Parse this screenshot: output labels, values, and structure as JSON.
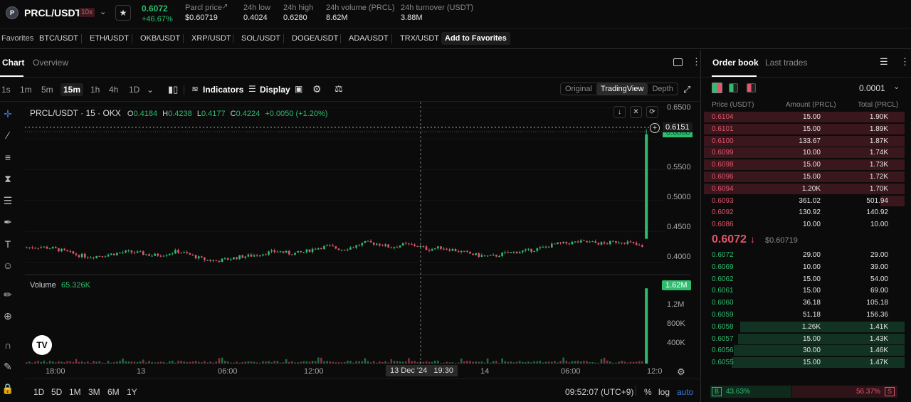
{
  "header": {
    "pair": "PRCL/USDT",
    "leverage": "10x",
    "last_price": "0.6072",
    "change_pct": "+46.67%",
    "stats": [
      {
        "label": "Parcl price",
        "value": "$0.60719"
      },
      {
        "label": "24h low",
        "value": "0.4024"
      },
      {
        "label": "24h high",
        "value": "0.6280"
      },
      {
        "label": "24h volume (PRCL)",
        "value": "8.62M"
      },
      {
        "label": "24h turnover (USDT)",
        "value": "3.88M"
      }
    ]
  },
  "favorites": {
    "label": "Favorites",
    "items": [
      "BTC/USDT",
      "ETH/USDT",
      "OKB/USDT",
      "XRP/USDT",
      "SOL/USDT",
      "DOGE/USDT",
      "ADA/USDT",
      "TRX/USDT"
    ],
    "add_label": "Add to Favorites"
  },
  "chart_panel": {
    "tabs": [
      "Chart",
      "Overview"
    ],
    "timeframes": [
      "1s",
      "1m",
      "5m",
      "15m",
      "1h",
      "4h",
      "1D"
    ],
    "active_timeframe": "15m",
    "indicators_label": "Indicators",
    "display_label": "Display",
    "view_modes": [
      "Original",
      "TradingView",
      "Depth"
    ],
    "active_view": "TradingView",
    "legend": {
      "title": "PRCL/USDT · 15 · OKX",
      "o_label": "O",
      "o": "0.4184",
      "h_label": "H",
      "h": "0.4238",
      "l_label": "L",
      "l": "0.4177",
      "c_label": "C",
      "c": "0.4224",
      "change": "+0.0050 (+1.20%)"
    },
    "crosshair_price": "0.6151",
    "volume_label": "Volume",
    "volume_value": "65.326K",
    "volume_last": "1.62M",
    "price_axis": [
      "0.6500",
      "0.5500",
      "0.5000",
      "0.4500",
      "0.4000"
    ],
    "price_axis_partial": "0.6000",
    "volume_axis": [
      "1.2M",
      "800K",
      "400K"
    ],
    "time_axis": [
      "18:00",
      "13",
      "06:00",
      "12:00",
      "14",
      "06:00",
      "12:0"
    ],
    "crosshair_time": "13 Dec '24   19:30",
    "ranges": [
      "1D",
      "5D",
      "1M",
      "3M",
      "6M",
      "1Y"
    ],
    "clock": "09:52:07 (UTC+9)",
    "pct_label": "%",
    "log_label": "log",
    "auto_label": "auto",
    "tv_logo": "TV"
  },
  "chart_data": {
    "type": "candlestick",
    "title": "PRCL/USDT · 15 · OKX",
    "price_range": [
      0.38,
      0.66
    ],
    "last_candle": {
      "open": 0.4184,
      "high": 0.4238,
      "low": 0.4177,
      "close": 0.4224
    },
    "spike": {
      "open": 0.438,
      "high": 0.6151,
      "close": 0.6072
    },
    "price_path": [
      0.424,
      0.425,
      0.423,
      0.418,
      0.412,
      0.409,
      0.411,
      0.414,
      0.417,
      0.415,
      0.411,
      0.413,
      0.418,
      0.412,
      0.405,
      0.402,
      0.405,
      0.409,
      0.411,
      0.415,
      0.418,
      0.414,
      0.416,
      0.423,
      0.426,
      0.421,
      0.425,
      0.432,
      0.43,
      0.424,
      0.429,
      0.427,
      0.421,
      0.424,
      0.42,
      0.415,
      0.411,
      0.409,
      0.414,
      0.417,
      0.419,
      0.423,
      0.429,
      0.431,
      0.433,
      0.432,
      0.43,
      0.434,
      0.432,
      0.424
    ],
    "volume_last": "1.62M",
    "volume_range": [
      0,
      1700000
    ]
  },
  "orderbook": {
    "tabs": [
      "Order book",
      "Last trades"
    ],
    "precision": "0.0001",
    "columns": [
      "Price (USDT)",
      "Amount (PRCL)",
      "Total (PRCL)"
    ],
    "asks": [
      {
        "price": "0.6104",
        "amount": "15.00",
        "total": "1.90K",
        "depth": 1.0
      },
      {
        "price": "0.6101",
        "amount": "15.00",
        "total": "1.89K",
        "depth": 1.0
      },
      {
        "price": "0.6100",
        "amount": "133.67",
        "total": "1.87K",
        "depth": 1.0
      },
      {
        "price": "0.6099",
        "amount": "10.00",
        "total": "1.74K",
        "depth": 1.0
      },
      {
        "price": "0.6098",
        "amount": "15.00",
        "total": "1.73K",
        "depth": 1.0
      },
      {
        "price": "0.6096",
        "amount": "15.00",
        "total": "1.72K",
        "depth": 1.0
      },
      {
        "price": "0.6094",
        "amount": "1.20K",
        "total": "1.70K",
        "depth": 1.0
      },
      {
        "price": "0.6093",
        "amount": "361.02",
        "total": "501.94",
        "depth": 0.12
      },
      {
        "price": "0.6092",
        "amount": "130.92",
        "total": "140.92",
        "depth": 0.0
      },
      {
        "price": "0.6086",
        "amount": "10.00",
        "total": "10.00",
        "depth": 0.0
      }
    ],
    "mid_price": "0.6072",
    "mid_usd": "$0.60719",
    "bids": [
      {
        "price": "0.6072",
        "amount": "29.00",
        "total": "29.00",
        "depth": 0.0
      },
      {
        "price": "0.6069",
        "amount": "10.00",
        "total": "39.00",
        "depth": 0.0
      },
      {
        "price": "0.6062",
        "amount": "15.00",
        "total": "54.00",
        "depth": 0.0
      },
      {
        "price": "0.6061",
        "amount": "15.00",
        "total": "69.00",
        "depth": 0.0
      },
      {
        "price": "0.6060",
        "amount": "36.18",
        "total": "105.18",
        "depth": 0.0
      },
      {
        "price": "0.6059",
        "amount": "51.18",
        "total": "156.36",
        "depth": 0.0
      },
      {
        "price": "0.6058",
        "amount": "1.26K",
        "total": "1.41K",
        "depth": 0.82
      },
      {
        "price": "0.6057",
        "amount": "15.00",
        "total": "1.43K",
        "depth": 0.83
      },
      {
        "price": "0.6056",
        "amount": "30.00",
        "total": "1.46K",
        "depth": 0.85
      },
      {
        "price": "0.6055",
        "amount": "15.00",
        "total": "1.47K",
        "depth": 0.86
      }
    ],
    "buy_label": "B",
    "buy_pct": "43.63%",
    "sell_pct": "56.37%",
    "sell_label": "S",
    "buy_ratio": 0.4363
  },
  "colors": {
    "up": "#2ebd6f",
    "down": "#e0566b",
    "bg": "#0b0b0b"
  }
}
